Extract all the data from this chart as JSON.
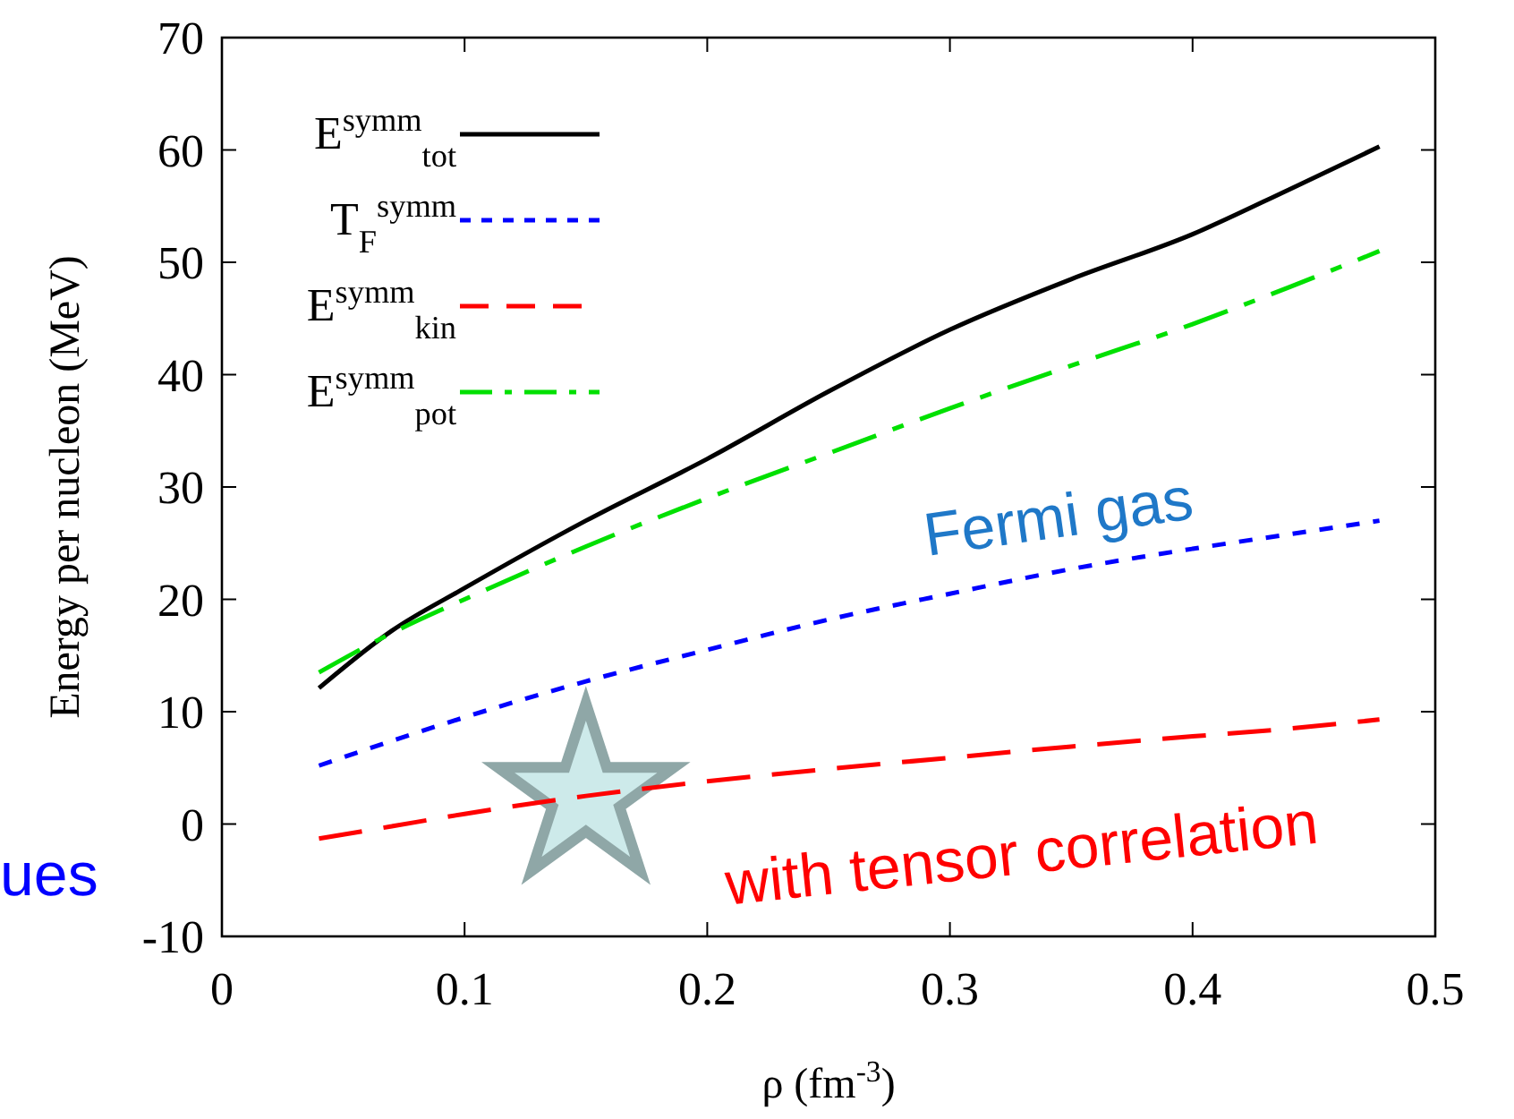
{
  "chart_data": {
    "type": "line",
    "xlabel": "ρ (fm$^{-3}$)",
    "ylabel": "Energy per nucleon (MeV)",
    "x": [
      0.04,
      0.07,
      0.1,
      0.15,
      0.2,
      0.25,
      0.3,
      0.35,
      0.4,
      0.44,
      0.477
    ],
    "series": [
      {
        "name": "E$^{symm}$$_{tot}$",
        "color": "#000000",
        "line_style": "solid",
        "values": [
          12.1,
          17.2,
          21,
          27,
          32.5,
          38.5,
          44,
          48.5,
          52.5,
          56.5,
          60.3
        ]
      },
      {
        "name": "T$_{F}$$^{symm}$",
        "color": "#0000ff",
        "line_style": "dotted",
        "values": [
          5.2,
          7.4,
          9.5,
          12.7,
          15.5,
          18.2,
          20.5,
          22.7,
          24.5,
          25.8,
          27
        ]
      },
      {
        "name": "E$^{symm}$$_{kin}$",
        "color": "#ff0000",
        "line_style": "dashed",
        "values": [
          -1.3,
          -0.2,
          0.9,
          2.5,
          3.8,
          4.9,
          5.9,
          6.9,
          7.8,
          8.5,
          9.3
        ]
      },
      {
        "name": "E$^{symm}$$_{pot}$",
        "color": "#00e000",
        "line_style": "dashdot",
        "values": [
          13.5,
          17,
          20,
          24.7,
          29,
          33,
          37,
          40.8,
          44.5,
          47.8,
          51
        ]
      }
    ],
    "xlim": [
      0,
      0.5
    ],
    "xticks": [
      0,
      0.1,
      0.2,
      0.3,
      0.4,
      0.5
    ],
    "ylim": [
      -10,
      70
    ],
    "yticks": [
      -10,
      0,
      10,
      20,
      30,
      40,
      50,
      60,
      70
    ],
    "grid": false,
    "legend": "top left",
    "annotations": [
      "Fermi gas",
      "with tensor correlation",
      "ues"
    ]
  }
}
